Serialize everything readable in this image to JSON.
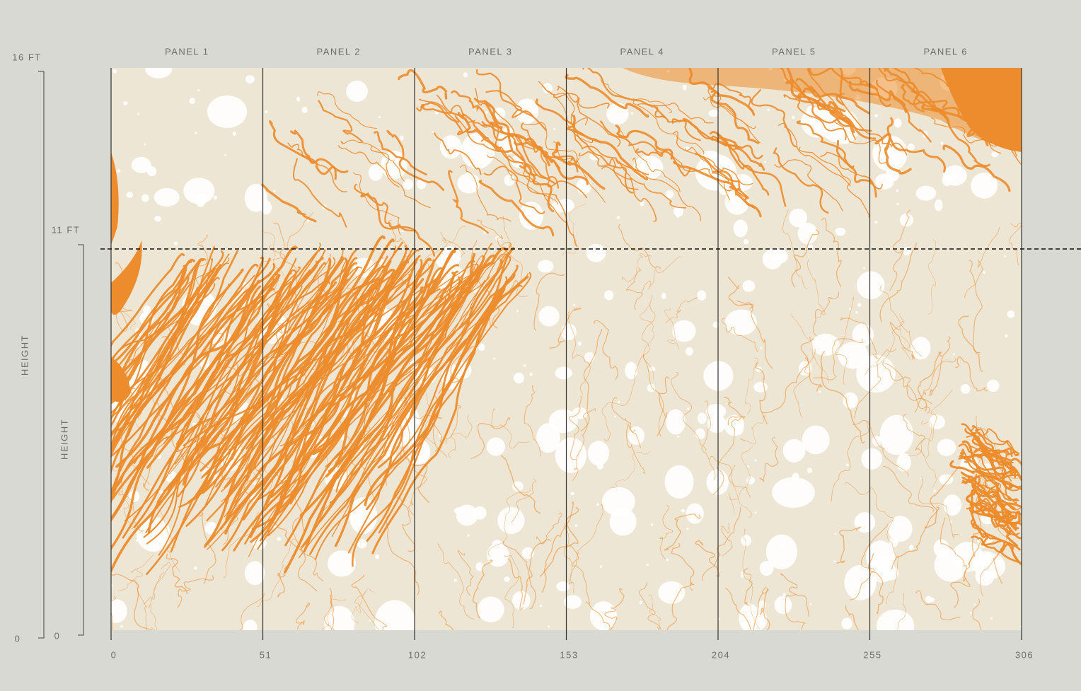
{
  "panels": [
    "PANEL 1",
    "PANEL 2",
    "PANEL 3",
    "PANEL 4",
    "PANEL 5",
    "PANEL 6"
  ],
  "width_ticks": [
    "0",
    "51",
    "102",
    "153",
    "204",
    "255",
    "306"
  ],
  "outer_scale": {
    "top": "16 FT",
    "bottom": "0",
    "label": "HEIGHT"
  },
  "inner_scale": {
    "top": "11 FT",
    "bottom": "0",
    "label": "HEIGHT"
  }
}
